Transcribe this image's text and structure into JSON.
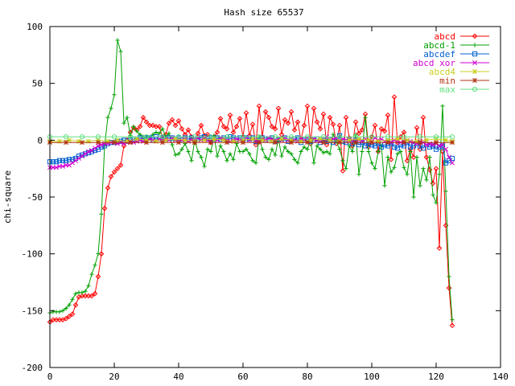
{
  "chart_data": {
    "type": "line",
    "title": "Hash size 65537",
    "xlabel": "",
    "ylabel": "chi-square",
    "xlim": [
      0,
      140
    ],
    "ylim": [
      -200,
      100
    ],
    "xticks": [
      0,
      20,
      40,
      60,
      80,
      100,
      120,
      140
    ],
    "yticks": [
      -200,
      -150,
      -100,
      -50,
      0,
      50,
      100
    ],
    "grid": false,
    "legend_position": "top-right",
    "series": [
      {
        "name": "abcd",
        "color": "#ff0000",
        "marker": "diamond",
        "x": [
          0,
          1,
          2,
          3,
          4,
          5,
          6,
          7,
          8,
          9,
          10,
          11,
          12,
          13,
          14,
          15,
          16,
          17,
          18,
          19,
          20,
          21,
          22,
          23,
          24,
          25,
          26,
          27,
          28,
          29,
          30,
          31,
          32,
          33,
          34,
          35,
          36,
          37,
          38,
          39,
          40,
          41,
          42,
          43,
          44,
          45,
          46,
          47,
          48,
          49,
          50,
          51,
          52,
          53,
          54,
          55,
          56,
          57,
          58,
          59,
          60,
          61,
          62,
          63,
          64,
          65,
          66,
          67,
          68,
          69,
          70,
          71,
          72,
          73,
          74,
          75,
          76,
          77,
          78,
          79,
          80,
          81,
          82,
          83,
          84,
          85,
          86,
          87,
          88,
          89,
          90,
          91,
          92,
          93,
          94,
          95,
          96,
          97,
          98,
          99,
          100,
          101,
          102,
          103,
          104,
          105,
          106,
          107,
          108,
          109,
          110,
          111,
          112,
          113,
          114,
          115,
          116,
          117,
          118,
          119,
          120,
          121,
          122,
          123,
          124,
          125
        ],
        "y": [
          -160,
          -158,
          -158,
          -158,
          -158,
          -157,
          -155,
          -153,
          -145,
          -138,
          -137,
          -137,
          -137,
          -137,
          -135,
          -120,
          -100,
          -60,
          -42,
          -32,
          -28,
          -25,
          -22,
          -5,
          0,
          7,
          11,
          9,
          12,
          20,
          16,
          13,
          13,
          12,
          12,
          2,
          5,
          15,
          18,
          13,
          17,
          10,
          5,
          9,
          3,
          -2,
          6,
          13,
          4,
          5,
          -2,
          3,
          7,
          19,
          12,
          10,
          22,
          7,
          12,
          19,
          3,
          24,
          4,
          14,
          -4,
          30,
          3,
          25,
          20,
          12,
          10,
          28,
          5,
          18,
          15,
          25,
          9,
          16,
          0,
          13,
          30,
          -3,
          28,
          16,
          10,
          23,
          -4,
          20,
          14,
          -3,
          13,
          -27,
          20,
          2,
          -5,
          16,
          6,
          9,
          23,
          -6,
          3,
          13,
          -10,
          10,
          8,
          22,
          -17,
          38,
          -2,
          3,
          7,
          -18,
          -8,
          -15,
          11,
          -8,
          20,
          -15,
          -26,
          -38,
          -25,
          -95,
          -10,
          -75,
          -130,
          -163
        ]
      },
      {
        "name": "abcd-1",
        "color": "#00a000",
        "marker": "plus",
        "x": [
          0,
          1,
          2,
          3,
          4,
          5,
          6,
          7,
          8,
          9,
          10,
          11,
          12,
          13,
          14,
          15,
          16,
          17,
          18,
          19,
          20,
          21,
          22,
          23,
          24,
          25,
          26,
          27,
          28,
          29,
          30,
          31,
          32,
          33,
          34,
          35,
          36,
          37,
          38,
          39,
          40,
          41,
          42,
          43,
          44,
          45,
          46,
          47,
          48,
          49,
          50,
          51,
          52,
          53,
          54,
          55,
          56,
          57,
          58,
          59,
          60,
          61,
          62,
          63,
          64,
          65,
          66,
          67,
          68,
          69,
          70,
          71,
          72,
          73,
          74,
          75,
          76,
          77,
          78,
          79,
          80,
          81,
          82,
          83,
          84,
          85,
          86,
          87,
          88,
          89,
          90,
          91,
          92,
          93,
          94,
          95,
          96,
          97,
          98,
          99,
          100,
          101,
          102,
          103,
          104,
          105,
          106,
          107,
          108,
          109,
          110,
          111,
          112,
          113,
          114,
          115,
          116,
          117,
          118,
          119,
          120,
          121,
          122,
          123,
          124,
          125
        ],
        "y": [
          -152,
          -151,
          -151,
          -151,
          -150,
          -148,
          -145,
          -140,
          -135,
          -134,
          -134,
          -133,
          -128,
          -118,
          -110,
          -100,
          -65,
          -5,
          20,
          28,
          40,
          88,
          78,
          15,
          20,
          4,
          12,
          8,
          5,
          3,
          3,
          2,
          5,
          7,
          6,
          10,
          3,
          6,
          -4,
          -13,
          -12,
          -8,
          -3,
          -10,
          -18,
          0,
          -10,
          -15,
          -23,
          -8,
          -10,
          4,
          -14,
          -5,
          -10,
          -18,
          -12,
          -17,
          -3,
          -10,
          -10,
          -8,
          -12,
          -18,
          -20,
          3,
          -8,
          -15,
          -17,
          -8,
          -13,
          1,
          -14,
          -6,
          -10,
          -12,
          -17,
          -20,
          -10,
          -6,
          -8,
          0,
          -20,
          -5,
          -8,
          -11,
          -10,
          -12,
          5,
          -1,
          -8,
          -18,
          -25,
          -5,
          -10,
          5,
          -30,
          -10,
          20,
          -10,
          -20,
          -25,
          -10,
          -5,
          -40,
          -15,
          -28,
          -24,
          -12,
          -10,
          -24,
          -30,
          -10,
          -50,
          -15,
          -40,
          -25,
          -35,
          -15,
          -48,
          -55,
          -30,
          30,
          -45,
          -120,
          -158
        ]
      },
      {
        "name": "abcdef",
        "color": "#0060d0",
        "marker": "square",
        "x": [
          0,
          1,
          2,
          3,
          4,
          5,
          6,
          7,
          8,
          9,
          10,
          11,
          12,
          13,
          14,
          15,
          16,
          17,
          18,
          19,
          20,
          21,
          22,
          23,
          24,
          25,
          26,
          27,
          28,
          29,
          30,
          31,
          32,
          33,
          34,
          35,
          36,
          37,
          38,
          39,
          40,
          41,
          42,
          43,
          44,
          45,
          46,
          47,
          48,
          49,
          50,
          51,
          52,
          53,
          54,
          55,
          56,
          57,
          58,
          59,
          60,
          61,
          62,
          63,
          64,
          65,
          66,
          67,
          68,
          69,
          70,
          71,
          72,
          73,
          74,
          75,
          76,
          77,
          78,
          79,
          80,
          81,
          82,
          83,
          84,
          85,
          86,
          87,
          88,
          89,
          90,
          91,
          92,
          93,
          94,
          95,
          96,
          97,
          98,
          99,
          100,
          101,
          102,
          103,
          104,
          105,
          106,
          107,
          108,
          109,
          110,
          111,
          112,
          113,
          114,
          115,
          116,
          117,
          118,
          119,
          120,
          121,
          122,
          123,
          124,
          125
        ],
        "y": [
          -19,
          -19,
          -19,
          -18,
          -18,
          -18,
          -17,
          -17,
          -16,
          -14,
          -13,
          -12,
          -11,
          -10,
          -9,
          -8,
          -6,
          -5,
          -3,
          -2,
          -2,
          -1,
          -1,
          0,
          -1,
          0,
          1,
          0,
          2,
          1,
          2,
          2,
          0,
          3,
          1,
          2,
          1,
          2,
          2,
          1,
          2,
          0,
          2,
          1,
          2,
          0,
          1,
          2,
          3,
          1,
          2,
          0,
          2,
          1,
          2,
          0,
          3,
          2,
          1,
          2,
          0,
          2,
          1,
          2,
          -1,
          0,
          2,
          0,
          1,
          2,
          -1,
          0,
          1,
          2,
          -1,
          0,
          1,
          2,
          -2,
          0,
          1,
          -1,
          0,
          1,
          -2,
          0,
          -1,
          0,
          -2,
          0,
          4,
          -1,
          -2,
          0,
          -3,
          0,
          -4,
          -2,
          -5,
          -3,
          -4,
          -5,
          -3,
          -6,
          -4,
          -5,
          -3,
          -6,
          -7,
          -4,
          -5,
          -2,
          -6,
          -5,
          -3,
          -5,
          -7,
          -4,
          -6,
          -5,
          -8,
          -6,
          -5,
          -20,
          -18,
          -16
        ]
      },
      {
        "name": "abcd xor",
        "color": "#d000d0",
        "marker": "cross",
        "x": [
          0,
          1,
          2,
          3,
          4,
          5,
          6,
          7,
          8,
          9,
          10,
          11,
          12,
          13,
          14,
          15,
          16,
          17,
          18,
          19,
          20,
          21,
          22,
          23,
          24,
          25,
          26,
          27,
          28,
          29,
          30,
          31,
          32,
          33,
          34,
          35,
          36,
          37,
          38,
          39,
          40,
          41,
          42,
          43,
          44,
          45,
          46,
          47,
          48,
          49,
          50,
          51,
          52,
          53,
          54,
          55,
          56,
          57,
          58,
          59,
          60,
          61,
          62,
          63,
          64,
          65,
          66,
          67,
          68,
          69,
          70,
          71,
          72,
          73,
          74,
          75,
          76,
          77,
          78,
          79,
          80,
          81,
          82,
          83,
          84,
          85,
          86,
          87,
          88,
          89,
          90,
          91,
          92,
          93,
          94,
          95,
          96,
          97,
          98,
          99,
          100,
          101,
          102,
          103,
          104,
          105,
          106,
          107,
          108,
          109,
          110,
          111,
          112,
          113,
          114,
          115,
          116,
          117,
          118,
          119,
          120,
          121,
          122,
          123,
          124,
          125
        ],
        "y": [
          -24,
          -24,
          -24,
          -23,
          -23,
          -22,
          -22,
          -20,
          -18,
          -16,
          -14,
          -12,
          -10,
          -9,
          -7,
          -5,
          -4,
          -3,
          -3,
          -2,
          -2,
          -3,
          -2,
          -3,
          -2,
          -1,
          -2,
          -1,
          0,
          -1,
          0,
          1,
          0,
          -1,
          1,
          0,
          1,
          0,
          2,
          0,
          1,
          0,
          1,
          -1,
          0,
          1,
          2,
          0,
          1,
          0,
          -1,
          1,
          0,
          2,
          1,
          0,
          -1,
          0,
          1,
          0,
          1,
          2,
          0,
          1,
          0,
          -1,
          1,
          0,
          2,
          1,
          0,
          1,
          0,
          2,
          0,
          1,
          0,
          -1,
          1,
          0,
          2,
          0,
          1,
          0,
          -1,
          1,
          3,
          0,
          1,
          2,
          0,
          1,
          0,
          -1,
          0,
          1,
          0,
          -1,
          1,
          0,
          -1,
          2,
          0,
          1,
          -1,
          0,
          -2,
          0,
          -1,
          -2,
          -1,
          0,
          -1,
          -2,
          -3,
          -1,
          -2,
          -4,
          -3,
          -4,
          -3,
          -5,
          -4,
          -8,
          -15,
          -20
        ]
      },
      {
        "name": "abcd4",
        "color": "#c8d020",
        "marker": "star",
        "x": [
          0,
          3,
          6,
          9,
          12,
          15,
          18,
          21,
          24,
          27,
          30,
          33,
          36,
          39,
          42,
          45,
          48,
          51,
          54,
          57,
          60,
          63,
          66,
          69,
          72,
          75,
          78,
          81,
          84,
          87,
          90,
          93,
          96,
          99,
          102,
          105,
          108,
          111,
          114,
          117,
          120,
          123,
          125
        ],
        "y": [
          -1,
          -1,
          0,
          -1,
          -1,
          0,
          -1,
          0,
          -1,
          1,
          0,
          -1,
          0,
          1,
          0,
          -1,
          0,
          1,
          0,
          -1,
          0,
          1,
          0,
          -1,
          1,
          0,
          -1,
          0,
          1,
          0,
          -1,
          0,
          1,
          0,
          -1,
          0,
          1,
          0,
          -1,
          0,
          1,
          0,
          -1
        ]
      },
      {
        "name": "min",
        "color": "#b03010",
        "marker": "asterisk",
        "x": [
          0,
          5,
          10,
          15,
          20,
          25,
          30,
          35,
          40,
          45,
          50,
          55,
          60,
          65,
          70,
          75,
          80,
          85,
          90,
          95,
          100,
          105,
          110,
          115,
          120,
          125
        ],
        "y": [
          -2,
          -2,
          -2,
          -2,
          -2,
          -2,
          -2,
          -2,
          -2,
          -2,
          -2,
          -2,
          -2,
          -2,
          -2,
          -2,
          -2,
          -2,
          -2,
          -2,
          -2,
          -2,
          -2,
          -2,
          -2,
          -2
        ]
      },
      {
        "name": "max",
        "color": "#60e080",
        "marker": "circle",
        "x": [
          0,
          5,
          10,
          15,
          20,
          25,
          30,
          35,
          40,
          45,
          50,
          55,
          60,
          65,
          70,
          75,
          80,
          85,
          90,
          95,
          100,
          105,
          110,
          115,
          120,
          125
        ],
        "y": [
          3,
          3,
          3,
          3,
          3,
          3,
          3,
          3,
          3,
          3,
          3,
          3,
          3,
          3,
          3,
          3,
          3,
          3,
          3,
          3,
          3,
          3,
          3,
          3,
          3,
          3
        ]
      }
    ]
  }
}
